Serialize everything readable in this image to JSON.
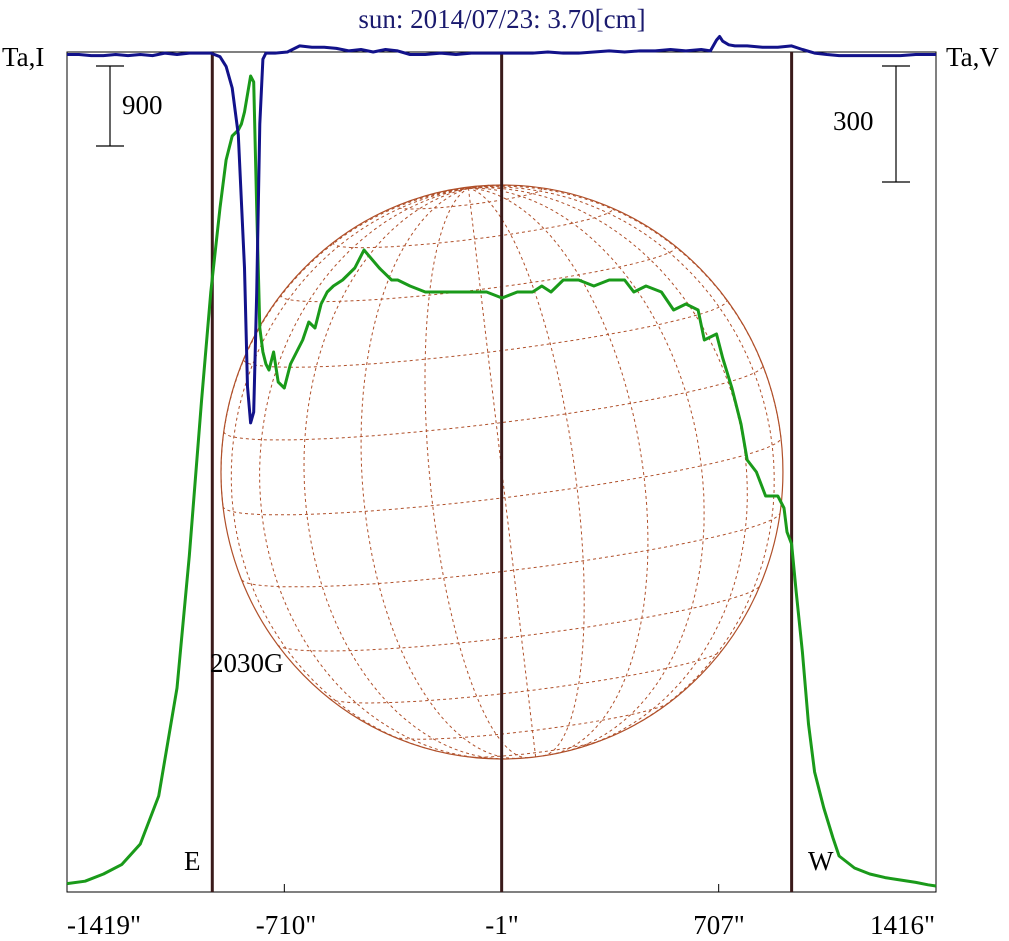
{
  "chart_data": {
    "type": "line",
    "title": "sun: 2014/07/23: 3.70[cm]",
    "left_axis_label": "Ta,I",
    "right_axis_label": "Ta,V",
    "left_scale_bar_value": "900",
    "right_scale_bar_value": "300",
    "x_ticks": [
      {
        "value": -1419,
        "label": "-1419\""
      },
      {
        "value": -710,
        "label": "-710\""
      },
      {
        "value": -1,
        "label": "-1\""
      },
      {
        "value": 707,
        "label": "707\""
      },
      {
        "value": 1416,
        "label": "1416\""
      }
    ],
    "xlim": [
      -1419,
      1416
    ],
    "vertical_markers": [
      {
        "x": -945,
        "label": "E"
      },
      {
        "x": -1,
        "label": ""
      },
      {
        "x": 945,
        "label": "W"
      }
    ],
    "field_annotation": {
      "x": -790,
      "y": -3100,
      "label": "2030G"
    },
    "ylim_left": [
      0,
      7000
    ],
    "ylim_right": [
      -2333,
      0
    ],
    "colors": {
      "title": "#1a1a6e",
      "intensity": "#1a9a1a",
      "polarization": "#12128a",
      "markers": "#3a1a1a",
      "disk": "#b0502a"
    },
    "series": [
      {
        "name": "I",
        "axis": "left",
        "x": [
          -1419,
          -1360,
          -1300,
          -1240,
          -1180,
          -1120,
          -1060,
          -1020,
          -980,
          -950,
          -920,
          -900,
          -880,
          -860,
          -850,
          -840,
          -820,
          -810,
          -800,
          -790,
          -780,
          -770,
          -760,
          -745,
          -730,
          -710,
          -690,
          -670,
          -650,
          -630,
          -610,
          -590,
          -570,
          -550,
          -520,
          -480,
          -450,
          -400,
          -360,
          -340,
          -300,
          -250,
          -200,
          -150,
          -100,
          -50,
          0,
          50,
          100,
          130,
          160,
          200,
          250,
          300,
          350,
          400,
          430,
          470,
          520,
          560,
          600,
          640,
          660,
          700,
          710,
          720,
          750,
          780,
          800,
          830,
          860,
          900,
          920,
          930,
          945,
          960,
          980,
          1000,
          1020,
          1050,
          1080,
          1100,
          1150,
          1200,
          1250,
          1300,
          1350,
          1390,
          1416
        ],
        "y": [
          70,
          90,
          150,
          230,
          400,
          800,
          1700,
          2800,
          4100,
          5000,
          5700,
          6100,
          6300,
          6350,
          6400,
          6500,
          6800,
          6750,
          5700,
          4700,
          4500,
          4400,
          4350,
          4500,
          4250,
          4200,
          4400,
          4500,
          4600,
          4750,
          4700,
          4900,
          5000,
          5050,
          5100,
          5200,
          5350,
          5200,
          5100,
          5100,
          5050,
          5000,
          5000,
          5000,
          5000,
          5000,
          4950,
          5000,
          5000,
          5050,
          5000,
          5100,
          5100,
          5050,
          5100,
          5100,
          5000,
          5050,
          5000,
          4850,
          4900,
          4850,
          4600,
          4650,
          4550,
          4450,
          4200,
          3900,
          3600,
          3500,
          3300,
          3300,
          3200,
          3000,
          2900,
          2500,
          2000,
          1400,
          1000,
          700,
          450,
          300,
          200,
          150,
          120,
          100,
          80,
          60,
          50
        ]
      },
      {
        "name": "V",
        "axis": "right",
        "x": [
          -1419,
          -1380,
          -1340,
          -1300,
          -1260,
          -1220,
          -1180,
          -1140,
          -1100,
          -1060,
          -1020,
          -980,
          -950,
          -920,
          -900,
          -880,
          -860,
          -840,
          -830,
          -820,
          -810,
          -800,
          -790,
          -780,
          -770,
          -760,
          -740,
          -700,
          -660,
          -620,
          -580,
          -540,
          -500,
          -460,
          -420,
          -380,
          -340,
          -300,
          -250,
          -200,
          -150,
          -100,
          -50,
          0,
          50,
          100,
          150,
          200,
          250,
          300,
          350,
          400,
          450,
          500,
          550,
          600,
          650,
          680,
          700,
          710,
          720,
          740,
          760,
          800,
          850,
          900,
          945,
          980,
          1020,
          1060,
          1100,
          1150,
          1200,
          1250,
          1300,
          1350,
          1416
        ],
        "y": [
          -7,
          -7,
          -10,
          -10,
          -7,
          -10,
          -7,
          -10,
          -3,
          -7,
          -3,
          -3,
          -3,
          -13,
          -40,
          -100,
          -230,
          -600,
          -930,
          -1030,
          -1000,
          -670,
          -200,
          -20,
          -3,
          -3,
          -3,
          0,
          17,
          13,
          13,
          10,
          3,
          7,
          0,
          7,
          3,
          -7,
          -7,
          -3,
          -7,
          -3,
          -3,
          -3,
          -3,
          -3,
          0,
          -3,
          -3,
          0,
          3,
          0,
          3,
          3,
          7,
          3,
          7,
          3,
          33,
          43,
          30,
          20,
          17,
          17,
          13,
          13,
          17,
          7,
          -3,
          -7,
          -10,
          -10,
          -10,
          -10,
          -10,
          -7,
          -7
        ]
      }
    ]
  }
}
